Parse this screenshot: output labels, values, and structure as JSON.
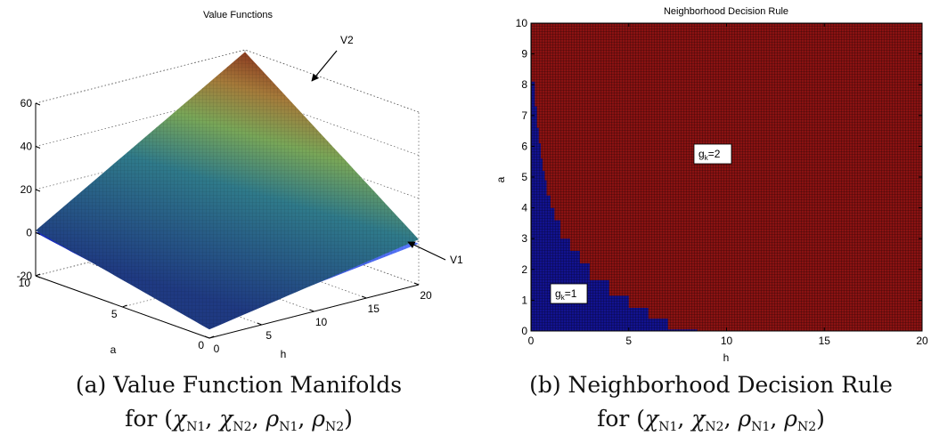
{
  "charts": [
    {
      "title": "Value Functions",
      "xlabel": "h",
      "ylabel": "a",
      "zticks": [
        "-20",
        "0",
        "20",
        "40",
        "60"
      ],
      "aticks": [
        "10",
        "5",
        "0"
      ],
      "hticks": [
        "0",
        "5",
        "10",
        "15",
        "20"
      ],
      "annotations": [
        "V2",
        "V1"
      ],
      "caption_line1": "(a) Value Function Manifolds",
      "caption_prefix": "for (",
      "caption_suffix": ")"
    },
    {
      "title": "Neighborhood Decision Rule",
      "xlabel": "h",
      "ylabel": "a",
      "xticks": [
        "0",
        "5",
        "10",
        "15",
        "20"
      ],
      "yticks": [
        "0",
        "1",
        "2",
        "3",
        "4",
        "5",
        "6",
        "7",
        "8",
        "9",
        "10"
      ],
      "region_labels": [
        {
          "base": "g",
          "sub": "k",
          "rest": "=2"
        },
        {
          "base": "g",
          "sub": "k",
          "rest": "=1"
        }
      ],
      "caption_line1": "(b) Neighborhood Decision Rule",
      "caption_prefix": "for (",
      "caption_suffix": ")"
    }
  ],
  "caption_params": [
    {
      "sym": "χ",
      "sub": "N1"
    },
    {
      "sym": "χ",
      "sub": "N2"
    },
    {
      "sym": "ρ",
      "sub": "N1"
    },
    {
      "sym": "ρ",
      "sub": "N2"
    }
  ],
  "chart_data": [
    {
      "type": "surface3d",
      "title": "Value Functions",
      "xlabel": "h",
      "ylabel": "a",
      "zlabel": "",
      "xlim": [
        0,
        20
      ],
      "ylim": [
        0,
        10
      ],
      "zlim": [
        -20,
        60
      ],
      "series": [
        {
          "name": "V2",
          "z_corners": {
            "h0_a0": -16,
            "h20_a0": 1,
            "h0_a10": 1,
            "h20_a10": 59
          }
        },
        {
          "name": "V1",
          "z_corners": {
            "h0_a0": -14,
            "h20_a0": -1,
            "h0_a10": 0,
            "h20_a10": 3
          }
        }
      ],
      "colors": {
        "v2_high": "#7a0f0f",
        "v2_mid": "#6fa85a",
        "v2_low": "#1f3a82",
        "v1": "#3c5cf2"
      }
    },
    {
      "type": "heatmap",
      "title": "Neighborhood Decision Rule",
      "xlabel": "h",
      "ylabel": "a",
      "xlim": [
        0,
        20
      ],
      "ylim": [
        0,
        10
      ],
      "boundary_h": [
        0.2,
        0.3,
        0.4,
        0.5,
        0.6,
        0.7,
        0.8,
        1.0,
        1.2,
        1.5,
        2.0,
        2.5,
        3.0,
        4.0,
        5.0,
        6.0,
        7.0,
        8.5
      ],
      "boundary_a": [
        8.1,
        7.3,
        6.6,
        6.1,
        5.6,
        5.2,
        4.9,
        4.4,
        4.0,
        3.6,
        3.0,
        2.6,
        2.2,
        1.65,
        1.15,
        0.75,
        0.4,
        0.05
      ],
      "categories": [
        "1",
        "2"
      ],
      "colors": {
        "1": "#10108a",
        "2": "#8a1212"
      }
    }
  ]
}
